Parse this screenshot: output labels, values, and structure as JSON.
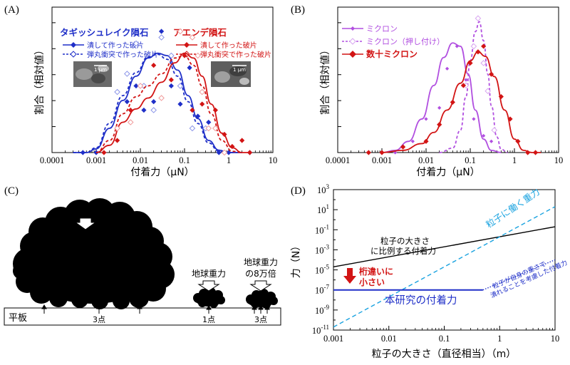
{
  "panels": {
    "A": {
      "label": "(A)"
    },
    "B": {
      "label": "(B)"
    },
    "C": {
      "label": "(C)"
    },
    "D": {
      "label": "(D)"
    }
  },
  "colors": {
    "blue": "#1f2fc8",
    "red": "#d21414",
    "purple": "#b14fe0",
    "cyan": "#1aa3e0",
    "lightblue_open": "#8b95e8",
    "pink_open": "#f09a9a",
    "lavender_open": "#d8a6f0",
    "black": "#000000"
  },
  "chart_data": [
    {
      "id": "A",
      "type": "scatter",
      "xscale": "log",
      "xlim": [
        0.0001,
        10
      ],
      "x_ticks": [
        "0.0001",
        "0.001",
        "0.01",
        "0.1",
        "1",
        "10"
      ],
      "xlabel": "付着力（μN）",
      "ylabel": "割合（相対値）",
      "legend_groups": [
        {
          "title": "タギッシュレイク隕石",
          "color": "#1f2fc8",
          "entries": [
            "潰して作った破片",
            "弾丸衝突で作った破片"
          ]
        },
        {
          "title": "アエンデ隕石",
          "color": "#d21414",
          "entries": [
            "潰して作った破片",
            "弾丸衝突で作った破片"
          ]
        }
      ],
      "scale_bar_labels": [
        "1 μm",
        "1 μm"
      ],
      "series": [
        {
          "name": "タギッシュレイク隕石 潰して作った破片",
          "color": "#1f2fc8",
          "style": "solid",
          "marker": "filled-diamond",
          "x": [
            0.0005,
            0.001,
            0.003,
            0.005,
            0.008,
            0.012,
            0.02,
            0.03,
            0.05,
            0.08,
            0.13,
            0.2,
            0.35,
            0.6,
            1.0,
            3.0
          ],
          "y": [
            0.0,
            0.0,
            0.5,
            0.42,
            0.55,
            0.35,
            0.42,
            1.0,
            0.55,
            0.4,
            0.7,
            0.3,
            0.25,
            0.0,
            0.0,
            0.0
          ],
          "fit_x": [
            0.0003,
            0.0006,
            0.001,
            0.002,
            0.004,
            0.008,
            0.015,
            0.025,
            0.04,
            0.07,
            0.12,
            0.2,
            0.35,
            0.6,
            1.0,
            2.0
          ],
          "fit_y": [
            0.0,
            0.0,
            0.03,
            0.2,
            0.43,
            0.63,
            0.78,
            0.82,
            0.8,
            0.68,
            0.47,
            0.28,
            0.1,
            0.02,
            0.0,
            0.0
          ]
        },
        {
          "name": "タギッシュレイク隕石 弾丸衝突で作った破片",
          "color": "#1f2fc8",
          "style": "dashed",
          "marker": "open-diamond",
          "x": [
            0.003,
            0.005,
            0.008,
            0.012,
            0.02,
            0.03,
            0.05,
            0.08,
            0.15,
            0.3
          ],
          "y": [
            0.5,
            0.65,
            0.9,
            0.55,
            0.35,
            0.95,
            0.8,
            0.55,
            0.2,
            0.2
          ],
          "fit_x": [
            0.0003,
            0.0006,
            0.001,
            0.002,
            0.004,
            0.008,
            0.015,
            0.025,
            0.04,
            0.07,
            0.12,
            0.2,
            0.35,
            0.6,
            1.0,
            2.0
          ],
          "fit_y": [
            0.0,
            0.0,
            0.04,
            0.24,
            0.47,
            0.66,
            0.79,
            0.81,
            0.77,
            0.63,
            0.42,
            0.24,
            0.08,
            0.01,
            0.0,
            0.0
          ]
        },
        {
          "name": "アエンデ隕石 潰して作った破片",
          "color": "#d21414",
          "style": "solid",
          "marker": "filled-diamond",
          "x": [
            0.0015,
            0.003,
            0.006,
            0.01,
            0.02,
            0.05,
            0.1,
            0.15,
            0.25,
            0.5,
            0.8,
            1.2,
            2.0,
            3.0
          ],
          "y": [
            0.0,
            0.1,
            0.35,
            0.55,
            0.72,
            0.6,
            0.8,
            0.35,
            0.4,
            0.35,
            0.15,
            0.05,
            0.1,
            0.0
          ],
          "fit_x": [
            0.001,
            0.002,
            0.004,
            0.008,
            0.015,
            0.03,
            0.06,
            0.1,
            0.16,
            0.25,
            0.4,
            0.7,
            1.2,
            2.0,
            3.0
          ],
          "fit_y": [
            0.0,
            0.06,
            0.25,
            0.36,
            0.45,
            0.58,
            0.74,
            0.82,
            0.78,
            0.63,
            0.4,
            0.16,
            0.04,
            0.0,
            0.0
          ]
        },
        {
          "name": "アエンデ隕石 弾丸衝突で作った破片",
          "color": "#d21414",
          "style": "dashed",
          "marker": "open-diamond",
          "x": [
            0.003,
            0.006,
            0.01,
            0.03,
            0.08,
            0.15,
            0.2,
            0.25,
            0.35,
            0.5,
            0.8
          ],
          "y": [
            0.2,
            0.25,
            0.55,
            0.45,
            1.0,
            0.95,
            0.8,
            0.5,
            0.2,
            0.2,
            0.0
          ],
          "fit_x": [
            0.001,
            0.002,
            0.004,
            0.008,
            0.015,
            0.03,
            0.06,
            0.1,
            0.16,
            0.25,
            0.4,
            0.7,
            1.2,
            2.0
          ],
          "fit_y": [
            0.0,
            0.1,
            0.32,
            0.46,
            0.55,
            0.65,
            0.78,
            0.8,
            0.72,
            0.55,
            0.32,
            0.1,
            0.01,
            0.0
          ]
        }
      ]
    },
    {
      "id": "B",
      "type": "scatter",
      "xscale": "log",
      "xlim": [
        0.0001,
        10
      ],
      "x_ticks": [
        "0.0001",
        "0.001",
        "0.01",
        "0.1",
        "1",
        "10"
      ],
      "xlabel": "付着力（μN）",
      "ylabel": "割合（相対値）",
      "series": [
        {
          "name": "ミクロン",
          "color": "#b14fe0",
          "style": "solid",
          "marker": "small-filled-diamond",
          "x": [
            0.002,
            0.005,
            0.01,
            0.02,
            0.03,
            0.05,
            0.08,
            0.12,
            0.2,
            0.3
          ],
          "y": [
            0.0,
            0.1,
            0.3,
            0.4,
            0.75,
            0.95,
            0.65,
            0.3,
            0.15,
            0.1
          ],
          "fit_x": [
            0.001,
            0.002,
            0.004,
            0.008,
            0.015,
            0.025,
            0.04,
            0.06,
            0.09,
            0.13,
            0.2,
            0.3,
            0.5
          ],
          "fit_y": [
            0.0,
            0.02,
            0.1,
            0.3,
            0.6,
            0.85,
            0.98,
            0.95,
            0.7,
            0.38,
            0.12,
            0.02,
            0.0
          ]
        },
        {
          "name": "ミクロン（押し付け）",
          "color": "#b14fe0",
          "style": "dashed",
          "marker": "open-diamond",
          "x": [
            0.08,
            0.12,
            0.15,
            0.2,
            0.25,
            0.35
          ],
          "y": [
            0.6,
            0.95,
            1.2,
            0.8,
            0.55,
            0.2
          ],
          "fit_x": [
            0.02,
            0.04,
            0.06,
            0.08,
            0.1,
            0.13,
            0.16,
            0.2,
            0.25,
            0.3,
            0.4,
            0.5,
            0.7
          ],
          "fit_y": [
            0.0,
            0.04,
            0.2,
            0.5,
            0.82,
            1.08,
            1.17,
            1.0,
            0.7,
            0.42,
            0.14,
            0.03,
            0.0
          ]
        },
        {
          "name": "数十ミクロン",
          "color": "#d21414",
          "style": "solid",
          "marker": "filled-diamond",
          "x": [
            0.0005,
            0.001,
            0.003,
            0.01,
            0.02,
            0.04,
            0.07,
            0.1,
            0.15,
            0.2,
            0.3,
            0.5,
            0.8,
            1.2,
            2.0,
            3.0
          ],
          "y": [
            0.0,
            0.0,
            0.05,
            0.1,
            0.25,
            0.45,
            0.6,
            0.8,
            0.9,
            0.95,
            0.7,
            0.5,
            0.3,
            0.1,
            0.0,
            0.0
          ],
          "fit_x": [
            0.001,
            0.003,
            0.008,
            0.015,
            0.03,
            0.06,
            0.1,
            0.15,
            0.22,
            0.35,
            0.6,
            1.0,
            1.6,
            2.5,
            4.0
          ],
          "fit_y": [
            0.0,
            0.02,
            0.08,
            0.18,
            0.38,
            0.62,
            0.82,
            0.9,
            0.86,
            0.68,
            0.38,
            0.12,
            0.02,
            0.0,
            0.0
          ]
        }
      ]
    },
    {
      "id": "D",
      "type": "line",
      "xscale": "log",
      "yscale": "log",
      "xlim": [
        0.001,
        10
      ],
      "ylim": [
        1e-11,
        1000
      ],
      "x_ticks": [
        "0.001",
        "0.01",
        "0.1",
        "1",
        "10"
      ],
      "y_ticks": [
        {
          "base": "10",
          "exp": "3"
        },
        {
          "base": "10",
          "exp": "1"
        },
        {
          "base": "10",
          "exp": "-1"
        },
        {
          "base": "10",
          "exp": "-3"
        },
        {
          "base": "10",
          "exp": "-5"
        },
        {
          "base": "10",
          "exp": "-7"
        },
        {
          "base": "10",
          "exp": "-9"
        },
        {
          "base": "10",
          "exp": "-11"
        }
      ],
      "xlabel": "粒子の大きさ（直径相当）（m）",
      "ylabel": "力（N）",
      "series": [
        {
          "name": "粒子の大きさに比例する付着力",
          "color": "#000000",
          "style": "solid",
          "x": [
            0.001,
            10
          ],
          "y": [
            2e-05,
            0.2
          ]
        },
        {
          "name": "粒子に働く重力",
          "color": "#1aa3e0",
          "style": "dashed",
          "x": [
            0.001,
            10
          ],
          "y": [
            2e-11,
            20
          ]
        },
        {
          "name": "粒子が自身の重さで潰れることを考慮した付着力",
          "color": "#1f2fc8",
          "style": "dotted",
          "x": [
            0.5,
            10
          ],
          "y": [
            1e-07,
            0.0001
          ]
        },
        {
          "name": "本研究の付着力",
          "color": "#1f2fc8",
          "style": "solid",
          "x": [
            0.001,
            0.5
          ],
          "y": [
            1e-07,
            1e-07
          ]
        }
      ],
      "annotations": {
        "black_line_1": "粒子の大きさ",
        "black_line_2": "に比例する付着力",
        "gravity": "粒子に働く重力",
        "crushed_1": "粒子が自身の重さで",
        "crushed_2": "潰れることを考慮した付着力",
        "arrow_1": "桁違いに",
        "arrow_2": "小さい",
        "this_study": "本研究の付着力"
      }
    }
  ],
  "panel_c": {
    "plate_label": "平板",
    "gravity_large": "地球重力",
    "gravity_small": "地球重力",
    "gravity_strong_1": "地球重力",
    "gravity_strong_2": "の8万倍",
    "contacts_large": "3点",
    "contacts_small": "1点",
    "contacts_strong": "3点"
  }
}
